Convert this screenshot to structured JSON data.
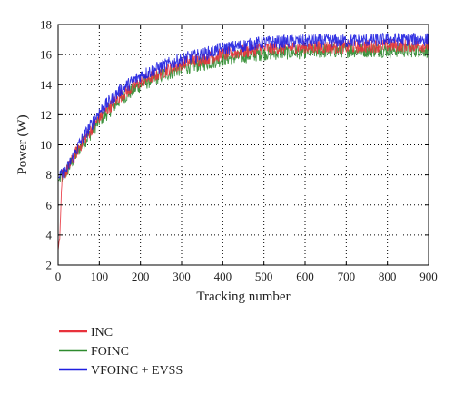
{
  "chart_data": {
    "type": "line",
    "title": "",
    "xlabel": "Tracking number",
    "ylabel": "Power (W)",
    "xlim": [
      0,
      900
    ],
    "ylim": [
      2,
      18
    ],
    "xticks": [
      0,
      100,
      200,
      300,
      400,
      500,
      600,
      700,
      800,
      900
    ],
    "yticks": [
      2,
      4,
      6,
      8,
      10,
      12,
      14,
      16,
      18
    ],
    "grid": true,
    "legend_position": "below",
    "series": [
      {
        "name": "INC",
        "color": "#e8323c",
        "noise": 0.45,
        "points": [
          [
            0,
            3.0
          ],
          [
            5,
            4.2
          ],
          [
            10,
            8.0
          ],
          [
            20,
            8.2
          ],
          [
            50,
            9.8
          ],
          [
            100,
            11.8
          ],
          [
            150,
            13.2
          ],
          [
            200,
            14.2
          ],
          [
            250,
            14.8
          ],
          [
            300,
            15.4
          ],
          [
            350,
            15.7
          ],
          [
            400,
            16.0
          ],
          [
            450,
            16.2
          ],
          [
            500,
            16.4
          ],
          [
            600,
            16.5
          ],
          [
            700,
            16.5
          ],
          [
            800,
            16.6
          ],
          [
            900,
            16.6
          ]
        ]
      },
      {
        "name": "FOINC",
        "color": "#2e8b2e",
        "noise": 0.5,
        "points": [
          [
            0,
            7.6
          ],
          [
            10,
            7.9
          ],
          [
            20,
            8.2
          ],
          [
            50,
            9.7
          ],
          [
            100,
            11.6
          ],
          [
            150,
            13.0
          ],
          [
            200,
            14.0
          ],
          [
            250,
            14.6
          ],
          [
            300,
            15.1
          ],
          [
            350,
            15.4
          ],
          [
            400,
            15.7
          ],
          [
            450,
            15.9
          ],
          [
            500,
            16.1
          ],
          [
            600,
            16.2
          ],
          [
            700,
            16.3
          ],
          [
            800,
            16.3
          ],
          [
            900,
            16.3
          ]
        ]
      },
      {
        "name": "VFOINC + EVSS",
        "color": "#1f1fe0",
        "noise": 0.45,
        "points": [
          [
            0,
            7.8
          ],
          [
            10,
            8.0
          ],
          [
            20,
            8.3
          ],
          [
            50,
            10.0
          ],
          [
            100,
            12.2
          ],
          [
            150,
            13.6
          ],
          [
            200,
            14.6
          ],
          [
            250,
            15.2
          ],
          [
            300,
            15.7
          ],
          [
            350,
            16.0
          ],
          [
            400,
            16.4
          ],
          [
            450,
            16.6
          ],
          [
            500,
            16.8
          ],
          [
            600,
            16.9
          ],
          [
            700,
            16.9
          ],
          [
            800,
            17.0
          ],
          [
            900,
            17.0
          ]
        ]
      }
    ]
  }
}
